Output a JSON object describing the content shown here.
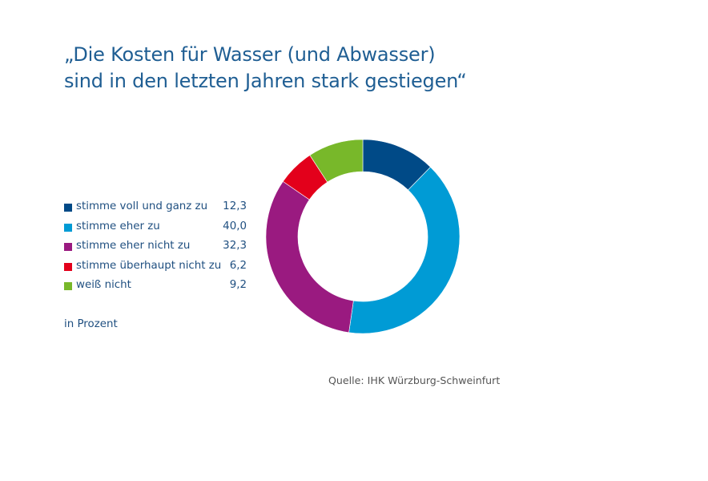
{
  "chart_data": {
    "type": "pie",
    "variant": "donut",
    "title_lines": [
      "„Die Kosten für Wasser (und Abwasser)",
      "sind in den letzten Jahren stark gestiegen“"
    ],
    "categories": [
      "stimme voll und ganz zu",
      "stimme eher zu",
      "stimme eher nicht zu",
      "stimme überhaupt nicht zu",
      "weiß nicht"
    ],
    "values": [
      12.3,
      40.0,
      32.3,
      6.2,
      9.2
    ],
    "value_labels": [
      "12,3",
      "40,0",
      "32,3",
      "6,2",
      "9,2"
    ],
    "colors": [
      "#004a87",
      "#009bd5",
      "#9a1a80",
      "#e3001b",
      "#78b82a"
    ],
    "unit_note": "in Prozent",
    "source": "Quelle: IHK Würzburg-Schweinfurt",
    "legend_position": "left",
    "start_angle": "top",
    "direction": "clockwise"
  }
}
